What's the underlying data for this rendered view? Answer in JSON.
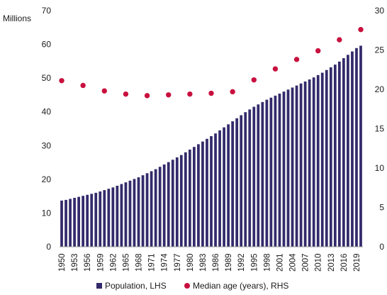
{
  "chart_data": {
    "type": "bar",
    "left_axis_unit": "Millions",
    "x": [
      1950,
      1951,
      1952,
      1953,
      1954,
      1955,
      1956,
      1957,
      1958,
      1959,
      1960,
      1961,
      1962,
      1963,
      1964,
      1965,
      1966,
      1967,
      1968,
      1969,
      1970,
      1971,
      1972,
      1973,
      1974,
      1975,
      1976,
      1977,
      1978,
      1979,
      1980,
      1981,
      1982,
      1983,
      1984,
      1985,
      1986,
      1987,
      1988,
      1989,
      1990,
      1991,
      1992,
      1993,
      1994,
      1995,
      1996,
      1997,
      1998,
      1999,
      2000,
      2001,
      2002,
      2003,
      2004,
      2005,
      2006,
      2007,
      2008,
      2009,
      2010,
      2011,
      2012,
      2013,
      2014,
      2015,
      2016,
      2017,
      2018,
      2019,
      2020
    ],
    "x_tick_labels": [
      "1950",
      "1953",
      "1956",
      "1959",
      "1962",
      "1965",
      "1968",
      "1971",
      "1974",
      "1977",
      "1980",
      "1983",
      "1986",
      "1989",
      "1992",
      "1995",
      "1998",
      "2001",
      "2004",
      "2007",
      "2010",
      "2013",
      "2016",
      "2019"
    ],
    "x_tick_years": [
      1950,
      1953,
      1956,
      1959,
      1962,
      1965,
      1968,
      1971,
      1974,
      1977,
      1980,
      1983,
      1986,
      1989,
      1992,
      1995,
      1998,
      2001,
      2004,
      2007,
      2010,
      2013,
      2016,
      2019
    ],
    "left_axis": {
      "ylim": [
        0,
        70
      ],
      "ticks": [
        "0",
        "10",
        "20",
        "30",
        "40",
        "50",
        "60",
        "70"
      ],
      "tick_values": [
        0,
        10,
        20,
        30,
        40,
        50,
        60,
        70
      ]
    },
    "right_axis": {
      "ylim": [
        0,
        30
      ],
      "ticks": [
        "0",
        "5",
        "10",
        "15",
        "20",
        "25",
        "30"
      ],
      "tick_values": [
        0,
        5,
        10,
        15,
        20,
        25,
        30
      ]
    },
    "series": [
      {
        "name": "Population, LHS",
        "type": "bar",
        "axis": "left",
        "color": "#332a6b",
        "values": [
          13.7,
          13.9,
          14.2,
          14.5,
          14.8,
          15.1,
          15.4,
          15.7,
          16.0,
          16.4,
          16.8,
          17.2,
          17.6,
          18.1,
          18.6,
          19.1,
          19.6,
          20.1,
          20.6,
          21.2,
          21.8,
          22.4,
          23.0,
          23.7,
          24.4,
          25.1,
          25.8,
          26.5,
          27.2,
          28.0,
          28.8,
          29.6,
          30.4,
          31.2,
          32.0,
          32.8,
          33.6,
          34.5,
          35.4,
          36.3,
          37.2,
          38.1,
          39.0,
          39.9,
          40.7,
          41.5,
          42.2,
          42.9,
          43.6,
          44.2,
          44.8,
          45.4,
          46.0,
          46.6,
          47.2,
          47.8,
          48.4,
          49.0,
          49.6,
          50.2,
          50.9,
          51.6,
          52.4,
          53.2,
          54.0,
          54.9,
          55.9,
          56.9,
          57.9,
          58.9,
          59.6
        ]
      },
      {
        "name": "Median age (years), RHS",
        "type": "scatter",
        "axis": "right",
        "color": "#c8103e",
        "x": [
          1950,
          1955,
          1960,
          1965,
          1970,
          1975,
          1980,
          1985,
          1990,
          1995,
          2000,
          2005,
          2010,
          2015,
          2020
        ],
        "values": [
          21.1,
          20.5,
          19.8,
          19.4,
          19.2,
          19.3,
          19.4,
          19.5,
          19.7,
          21.2,
          22.6,
          23.8,
          24.9,
          26.3,
          27.6
        ]
      }
    ],
    "legend_position": "bottom",
    "grid": false
  }
}
